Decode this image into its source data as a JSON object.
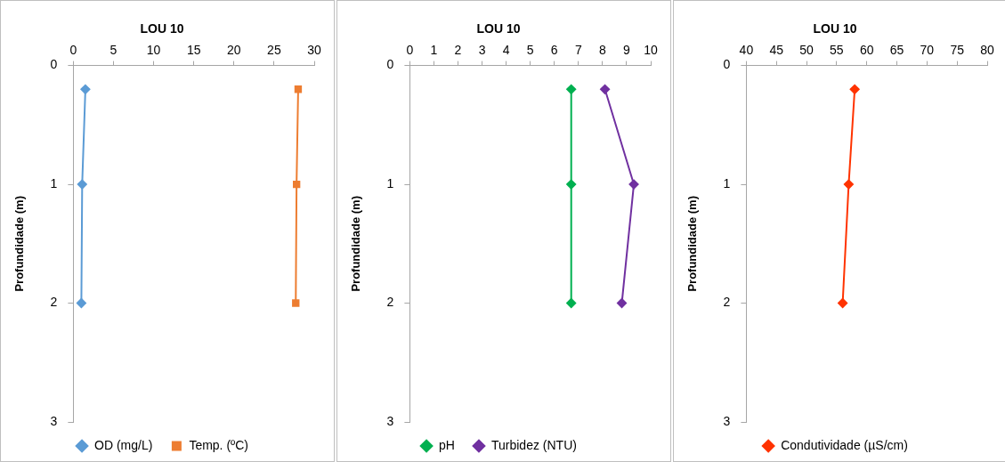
{
  "chart_data": [
    {
      "type": "line",
      "title": "LOU 10",
      "ylabel": "Profundidade (m)",
      "xlim": [
        0,
        30
      ],
      "xticks": [
        0,
        5,
        10,
        15,
        20,
        25,
        30
      ],
      "ylim": [
        3,
        0
      ],
      "yticks": [
        0,
        1,
        2,
        3
      ],
      "grid": false,
      "legend": "bottom",
      "line_style": "solid",
      "series": [
        {
          "name": "OD (mg/L)",
          "color": "#5b9bd5",
          "marker": "diamond",
          "x": [
            1.5,
            1.1,
            1.0
          ],
          "values": [
            0.2,
            1,
            2
          ]
        },
        {
          "name": "Temp. (ºC)",
          "color": "#ed7d31",
          "marker": "square",
          "x": [
            28.0,
            27.8,
            27.7
          ],
          "values": [
            0.2,
            1,
            2
          ]
        }
      ]
    },
    {
      "type": "line",
      "title": "LOU 10",
      "ylabel": "Profundidade (m)",
      "xlim": [
        0,
        10
      ],
      "xticks": [
        0,
        1,
        2,
        3,
        4,
        5,
        6,
        7,
        8,
        9,
        10
      ],
      "ylim": [
        3,
        0
      ],
      "yticks": [
        0,
        1,
        2,
        3
      ],
      "grid": false,
      "legend": "bottom",
      "line_style": "solid",
      "series": [
        {
          "name": "pH",
          "color": "#00b050",
          "marker": "diamond",
          "x": [
            6.7,
            6.7,
            6.7
          ],
          "values": [
            0.2,
            1,
            2
          ]
        },
        {
          "name": "Turbidez (NTU)",
          "color": "#7030a0",
          "marker": "diamond",
          "x": [
            8.1,
            9.3,
            8.8
          ],
          "values": [
            0.2,
            1,
            2
          ]
        }
      ]
    },
    {
      "type": "line",
      "title": "LOU 10",
      "ylabel": "Profundidade (m)",
      "xlim": [
        40,
        80
      ],
      "xticks": [
        40,
        45,
        50,
        55,
        60,
        65,
        70,
        75,
        80
      ],
      "ylim": [
        3,
        0
      ],
      "yticks": [
        0,
        1,
        2,
        3
      ],
      "grid": false,
      "legend": "bottom",
      "line_style": "solid",
      "series": [
        {
          "name": "Condutividade (µS/cm)",
          "color": "#ff3300",
          "marker": "diamond",
          "x": [
            58,
            57,
            56
          ],
          "values": [
            0.2,
            1,
            2
          ]
        }
      ]
    }
  ]
}
